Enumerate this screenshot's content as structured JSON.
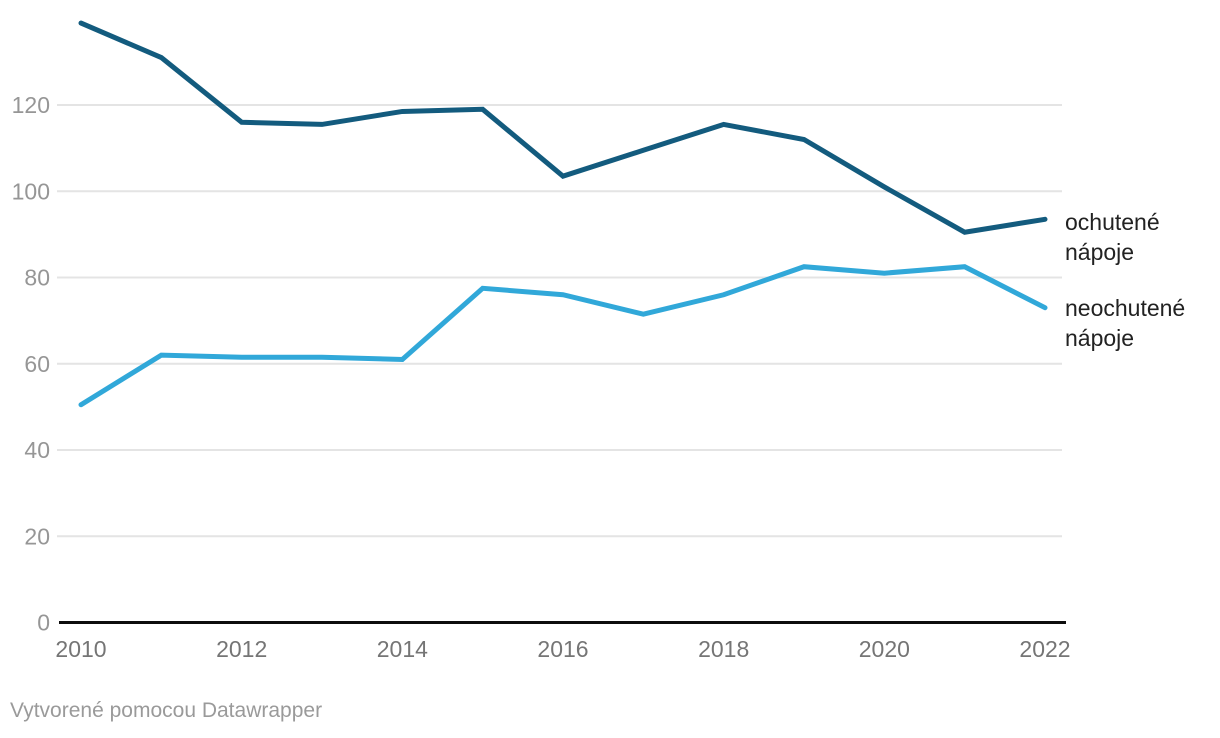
{
  "chart_data": {
    "type": "line",
    "x": [
      2010,
      2011,
      2012,
      2013,
      2014,
      2015,
      2016,
      2017,
      2018,
      2019,
      2020,
      2021,
      2022
    ],
    "x_tick_labels": [
      "2010",
      "2012",
      "2014",
      "2016",
      "2018",
      "2020",
      "2022"
    ],
    "y_ticks": [
      0,
      20,
      40,
      60,
      80,
      100,
      120
    ],
    "ylim": [
      0,
      143
    ],
    "grid": true,
    "legend_position": "right-of-line-ends",
    "series": [
      {
        "name": "ochutené nápoje",
        "label": "ochutené nápoje",
        "color": "#135b7e",
        "values": [
          139,
          131,
          116,
          115.5,
          118.5,
          119,
          103.5,
          109.5,
          115.5,
          112,
          101,
          90.5,
          93.5
        ]
      },
      {
        "name": "neochutené nápoje",
        "label": "neochutené nápoje",
        "color": "#31a8d9",
        "values": [
          50.5,
          62,
          61.5,
          61.5,
          61,
          77.5,
          76,
          71.5,
          76,
          82.5,
          81,
          82.5,
          73
        ]
      }
    ]
  },
  "colors": {
    "axis_line": "#0d0d0d",
    "gridline": "#e4e4e4",
    "y_tick_label": "#969696",
    "x_tick_label": "#757575",
    "series_label": "#222222",
    "footer": "#9a9a9a"
  },
  "footer": {
    "credit": "Vytvorené pomocou Datawrapper"
  }
}
